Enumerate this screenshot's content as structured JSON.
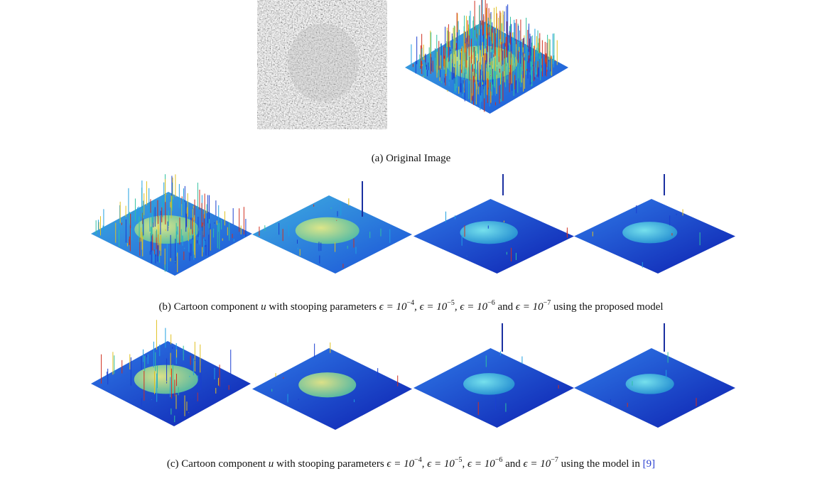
{
  "captions": [
    {
      "segments": [
        {
          "text": "(a) Original Image"
        }
      ]
    },
    {
      "segments": [
        {
          "text": "(b) Cartoon component "
        },
        {
          "math": "u"
        },
        {
          "text": " with stooping parameters "
        },
        {
          "math": "ϵ = 10"
        },
        {
          "sup": "−4"
        },
        {
          "text": ", "
        },
        {
          "math": "ϵ = 10"
        },
        {
          "sup": "−5"
        },
        {
          "text": ", "
        },
        {
          "math": "ϵ = 10"
        },
        {
          "sup": "−6"
        },
        {
          "text": " and "
        },
        {
          "math": "ϵ = 10"
        },
        {
          "sup": "−7"
        },
        {
          "text": " using the proposed model"
        }
      ]
    },
    {
      "segments": [
        {
          "text": "(c) Cartoon component "
        },
        {
          "math": "u"
        },
        {
          "text": " with stooping parameters "
        },
        {
          "math": "ϵ = 10"
        },
        {
          "sup": "−4"
        },
        {
          "text": ", "
        },
        {
          "math": "ϵ = 10"
        },
        {
          "sup": "−5"
        },
        {
          "text": ", "
        },
        {
          "math": "ϵ = 10"
        },
        {
          "sup": "−6"
        },
        {
          "text": " and "
        },
        {
          "math": "ϵ = 10"
        },
        {
          "sup": "−7"
        },
        {
          "text": " using the model in "
        },
        {
          "link": "[9]"
        }
      ]
    }
  ]
}
